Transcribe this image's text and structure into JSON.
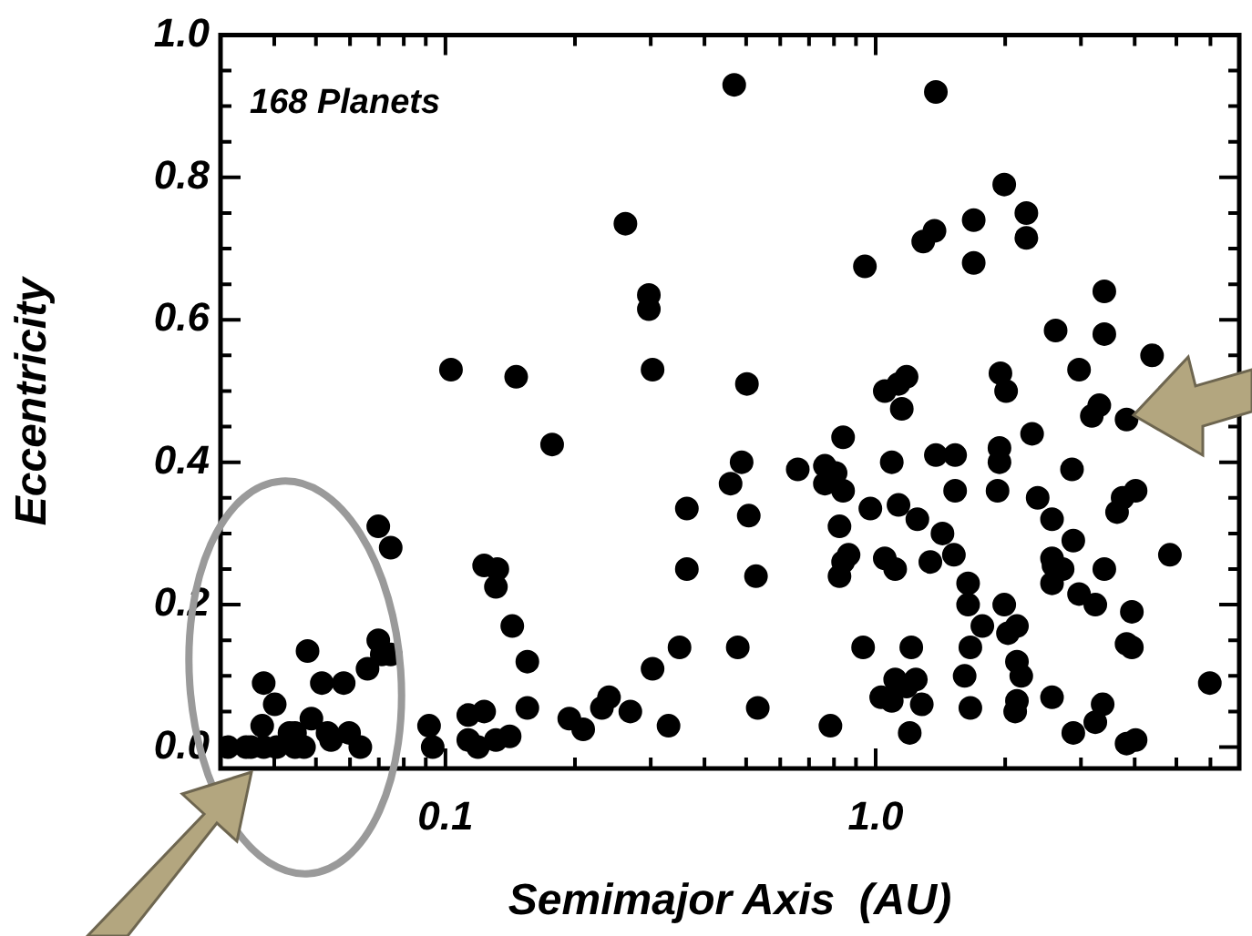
{
  "chart_data": {
    "type": "scatter",
    "xlabel": "Semimajor Axis  (AU)",
    "ylabel": "Eccentricity",
    "annotations": [
      "168 Planets"
    ],
    "log": "x",
    "xlim": [
      0.03,
      7
    ],
    "ylim": [
      -0.03,
      1.0
    ],
    "grid": false,
    "legend": false,
    "marker": "circle",
    "xticks": [
      {
        "value": 0.04,
        "label": null
      },
      {
        "value": 0.05,
        "label": null
      },
      {
        "value": 0.06,
        "label": null
      },
      {
        "value": 0.07,
        "label": null
      },
      {
        "value": 0.08,
        "label": null
      },
      {
        "value": 0.09,
        "label": null
      },
      {
        "value": 0.1,
        "label": "0.1"
      },
      {
        "value": 0.2,
        "label": null
      },
      {
        "value": 0.3,
        "label": null
      },
      {
        "value": 0.4,
        "label": null
      },
      {
        "value": 0.5,
        "label": null
      },
      {
        "value": 0.6,
        "label": null
      },
      {
        "value": 0.7,
        "label": null
      },
      {
        "value": 0.8,
        "label": null
      },
      {
        "value": 0.9,
        "label": null
      },
      {
        "value": 1,
        "label": "1.0"
      },
      {
        "value": 2,
        "label": null
      },
      {
        "value": 3,
        "label": null
      },
      {
        "value": 4,
        "label": null
      },
      {
        "value": 5,
        "label": null
      },
      {
        "value": 6,
        "label": null
      }
    ],
    "yticks": [
      {
        "value": 0,
        "label": "0.0"
      },
      {
        "value": 0.05,
        "label": null
      },
      {
        "value": 0.1,
        "label": null
      },
      {
        "value": 0.15,
        "label": null
      },
      {
        "value": 0.2,
        "label": "0.2"
      },
      {
        "value": 0.25,
        "label": null
      },
      {
        "value": 0.3,
        "label": null
      },
      {
        "value": 0.35,
        "label": null
      },
      {
        "value": 0.4,
        "label": "0.4"
      },
      {
        "value": 0.45,
        "label": null
      },
      {
        "value": 0.5,
        "label": null
      },
      {
        "value": 0.55,
        "label": null
      },
      {
        "value": 0.6,
        "label": "0.6"
      },
      {
        "value": 0.65,
        "label": null
      },
      {
        "value": 0.7,
        "label": null
      },
      {
        "value": 0.75,
        "label": null
      },
      {
        "value": 0.8,
        "label": "0.8"
      },
      {
        "value": 0.85,
        "label": null
      },
      {
        "value": 0.9,
        "label": null
      },
      {
        "value": 0.95,
        "label": null
      },
      {
        "value": 1.0,
        "label": "1.0"
      }
    ],
    "series": [
      {
        "color": "#000000",
        "x": [
          0.0312,
          0.0344,
          0.0378,
          0.0405,
          0.0447,
          0.0469,
          0.0434,
          0.0447,
          0.0375,
          0.0488,
          0.0532,
          0.0597,
          0.0634,
          0.0401,
          0.0378,
          0.0516,
          0.058,
          0.0659,
          0.0478,
          0.0698,
          0.0711,
          0.0746,
          0.0698,
          0.0746,
          0.0353,
          0.0542,
          0.0916,
          0.0934,
          0.113,
          0.123,
          0.113,
          0.119,
          0.131,
          0.141,
          0.123,
          0.132,
          0.131,
          0.143,
          0.155,
          0.155,
          0.177,
          0.194,
          0.209,
          0.231,
          0.24,
          0.269,
          0.303,
          0.35,
          0.33,
          0.364,
          0.364,
          0.103,
          0.146,
          0.262,
          0.297,
          0.297,
          0.303,
          0.469,
          1.38,
          1.99,
          1.69,
          2.24,
          2.24,
          1.29,
          1.37,
          1.69,
          0.944,
          3.4,
          2.62,
          3.4,
          4.39,
          0.502,
          1.95,
          2.01,
          2.97,
          3.31,
          3.18,
          3.83,
          1.05,
          1.18,
          1.13,
          1.15,
          2.31,
          0.84,
          0.488,
          0.659,
          0.762,
          0.807,
          1.09,
          1.38,
          1.53,
          1.94,
          1.94,
          2.86,
          0.46,
          0.507,
          0.527,
          0.478,
          0.532,
          0.762,
          0.84,
          0.824,
          0.865,
          0.84,
          0.824,
          0.785,
          0.935,
          1.53,
          0.972,
          1.13,
          1.25,
          1.43,
          1.52,
          1.34,
          1.05,
          1.11,
          1.92,
          2.38,
          2.57,
          2.88,
          2.57,
          2.59,
          2.72,
          2.57,
          3.4,
          2.97,
          3.24,
          3.94,
          3.64,
          3.75,
          4.02,
          4.83,
          1.64,
          1.64,
          1.99,
          1.77,
          2.03,
          2.13,
          1.66,
          1.21,
          1.61,
          2.13,
          2.18,
          1.11,
          1.24,
          1.18,
          1.03,
          1.09,
          1.28,
          1.2,
          1.66,
          2.13,
          2.11,
          2.57,
          3.83,
          3.94,
          3.37,
          3.24,
          2.88,
          3.83,
          4.02,
          5.98
        ],
        "values": [
          0.0,
          0.0,
          0.0,
          0.0,
          0.0,
          0.0,
          0.02,
          0.02,
          0.03,
          0.04,
          0.02,
          0.02,
          0.0,
          0.06,
          0.09,
          0.09,
          0.09,
          0.11,
          0.135,
          0.15,
          0.13,
          0.13,
          0.31,
          0.28,
          0.0,
          0.01,
          0.03,
          0.0,
          0.045,
          0.05,
          0.01,
          0.0,
          0.01,
          0.015,
          0.255,
          0.25,
          0.225,
          0.17,
          0.12,
          0.055,
          0.425,
          0.04,
          0.025,
          0.055,
          0.07,
          0.05,
          0.11,
          0.14,
          0.03,
          0.335,
          0.25,
          0.53,
          0.52,
          0.735,
          0.635,
          0.615,
          0.53,
          0.93,
          0.92,
          0.79,
          0.74,
          0.75,
          0.715,
          0.71,
          0.725,
          0.68,
          0.675,
          0.64,
          0.585,
          0.58,
          0.55,
          0.51,
          0.525,
          0.5,
          0.53,
          0.48,
          0.465,
          0.46,
          0.5,
          0.52,
          0.51,
          0.475,
          0.44,
          0.435,
          0.4,
          0.39,
          0.395,
          0.385,
          0.4,
          0.41,
          0.41,
          0.42,
          0.4,
          0.39,
          0.37,
          0.325,
          0.24,
          0.14,
          0.055,
          0.37,
          0.36,
          0.31,
          0.27,
          0.26,
          0.24,
          0.03,
          0.14,
          0.36,
          0.335,
          0.34,
          0.32,
          0.3,
          0.27,
          0.26,
          0.265,
          0.25,
          0.36,
          0.35,
          0.32,
          0.29,
          0.265,
          0.255,
          0.25,
          0.23,
          0.25,
          0.215,
          0.2,
          0.19,
          0.33,
          0.35,
          0.36,
          0.27,
          0.23,
          0.2,
          0.2,
          0.17,
          0.16,
          0.17,
          0.14,
          0.14,
          0.1,
          0.12,
          0.1,
          0.095,
          0.095,
          0.085,
          0.07,
          0.065,
          0.06,
          0.02,
          0.055,
          0.065,
          0.05,
          0.07,
          0.145,
          0.14,
          0.06,
          0.035,
          0.02,
          0.005,
          0.01,
          0.09
        ]
      }
    ]
  }
}
